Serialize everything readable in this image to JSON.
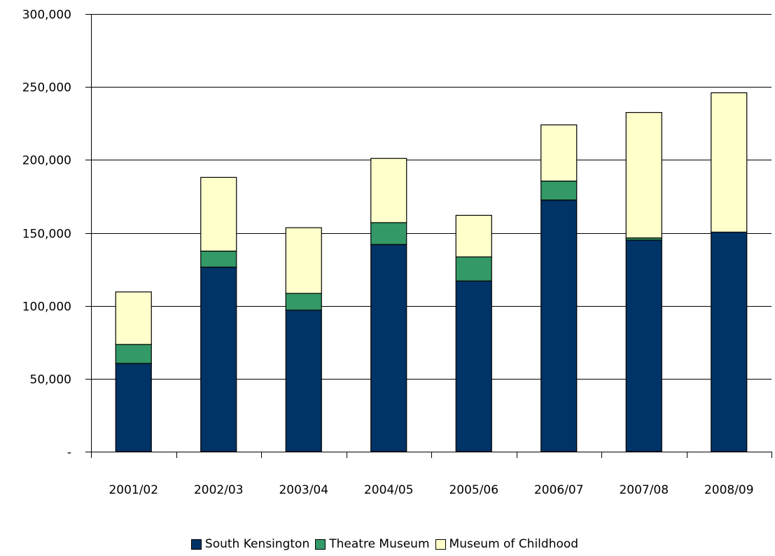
{
  "chart_data": {
    "type": "bar",
    "stacked": true,
    "title": "",
    "xlabel": "",
    "ylabel": "",
    "categories": [
      "2001/02",
      "2002/03",
      "2003/04",
      "2004/05",
      "2005/06",
      "2006/07",
      "2007/08",
      "2008/09"
    ],
    "series": [
      {
        "name": "South Kensington",
        "color": "#003366",
        "values": [
          60500,
          126500,
          97000,
          142000,
          117000,
          172500,
          145000,
          150500
        ]
      },
      {
        "name": "Theatre Museum",
        "color": "#339966",
        "values": [
          13000,
          11000,
          11500,
          15000,
          16500,
          13000,
          1500,
          0
        ]
      },
      {
        "name": "Museum of Childhood",
        "color": "#ffffcc",
        "values": [
          36000,
          50500,
          45000,
          44000,
          28500,
          38500,
          86000,
          95500
        ]
      }
    ],
    "ylim": [
      0,
      300000
    ],
    "yticks": [
      0,
      50000,
      100000,
      150000,
      200000,
      250000,
      300000
    ],
    "ytick_labels": [
      "-",
      "50,000",
      "100,000",
      "150,000",
      "200,000",
      "250,000",
      "300,000"
    ],
    "grid": true,
    "legend_position": "bottom"
  }
}
